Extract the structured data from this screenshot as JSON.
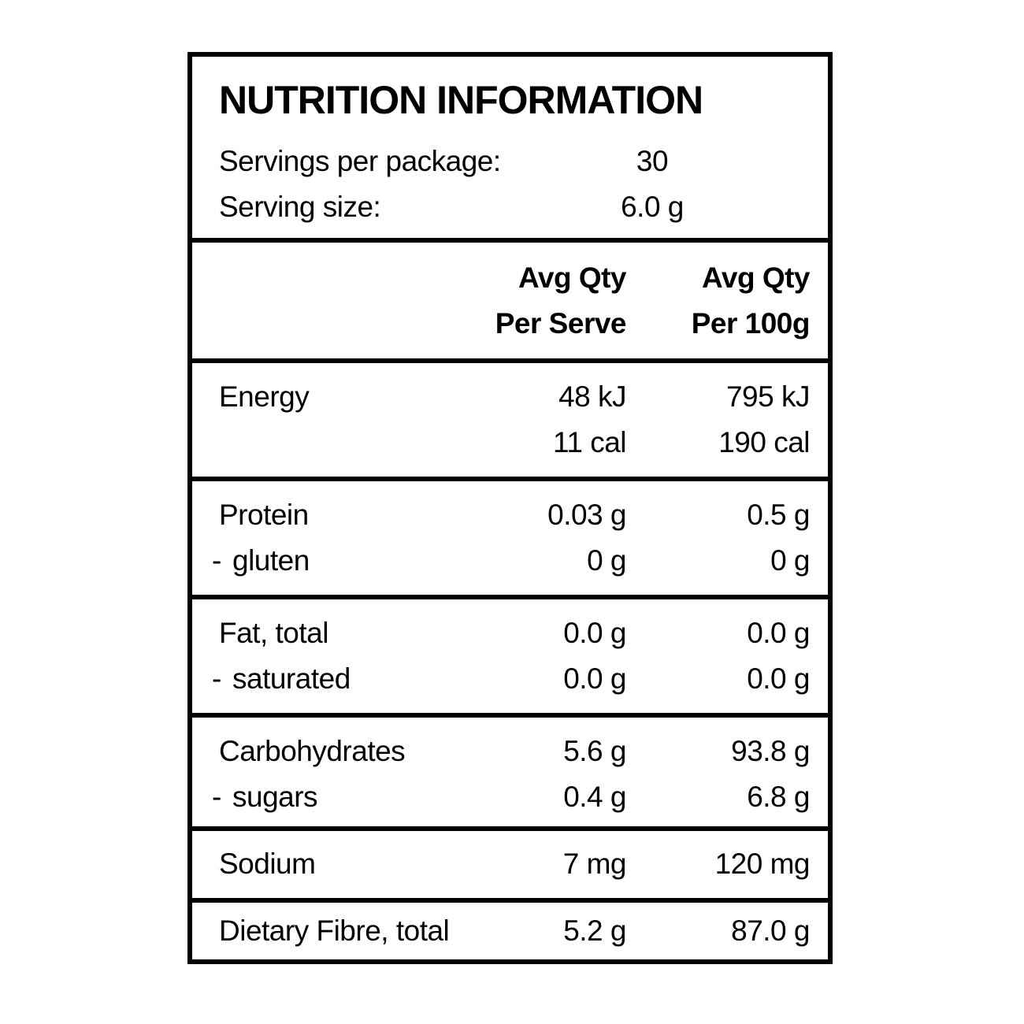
{
  "title": "NUTRITION INFORMATION",
  "serving_info": [
    {
      "label": "Servings per package:",
      "value": "30"
    },
    {
      "label": "Serving size:",
      "value": "6.0 g"
    }
  ],
  "columns": {
    "per_serve": [
      "Avg Qty",
      "Per Serve"
    ],
    "per_100g": [
      "Avg Qty",
      "Per 100g"
    ]
  },
  "sections": [
    {
      "lines": [
        {
          "label": "Energy",
          "dash": false,
          "per_serve": "48 kJ",
          "per_100g": "795 kJ"
        },
        {
          "label": "",
          "dash": false,
          "per_serve": "11 cal",
          "per_100g": "190 cal"
        }
      ]
    },
    {
      "lines": [
        {
          "label": "Protein",
          "dash": false,
          "per_serve": "0.03 g",
          "per_100g": "0.5 g"
        },
        {
          "label": "gluten",
          "dash": true,
          "per_serve": "0 g",
          "per_100g": "0 g"
        }
      ]
    },
    {
      "lines": [
        {
          "label": "Fat, total",
          "dash": false,
          "per_serve": "0.0 g",
          "per_100g": "0.0 g"
        },
        {
          "label": "saturated",
          "dash": true,
          "per_serve": "0.0 g",
          "per_100g": "0.0 g"
        }
      ]
    },
    {
      "lines": [
        {
          "label": "Carbohydrates",
          "dash": false,
          "per_serve": "5.6 g",
          "per_100g": "93.8 g"
        },
        {
          "label": "sugars",
          "dash": true,
          "per_serve": "0.4 g",
          "per_100g": "6.8 g"
        }
      ]
    },
    {
      "lines": [
        {
          "label": "Sodium",
          "dash": false,
          "per_serve": "7 mg",
          "per_100g": "120 mg"
        }
      ]
    },
    {
      "lines": [
        {
          "label": "Dietary Fibre, total",
          "dash": false,
          "per_serve": "5.2 g",
          "per_100g": "87.0 g"
        }
      ]
    }
  ],
  "colors": {
    "border": "#000000",
    "text": "#000000",
    "background": "#ffffff"
  }
}
